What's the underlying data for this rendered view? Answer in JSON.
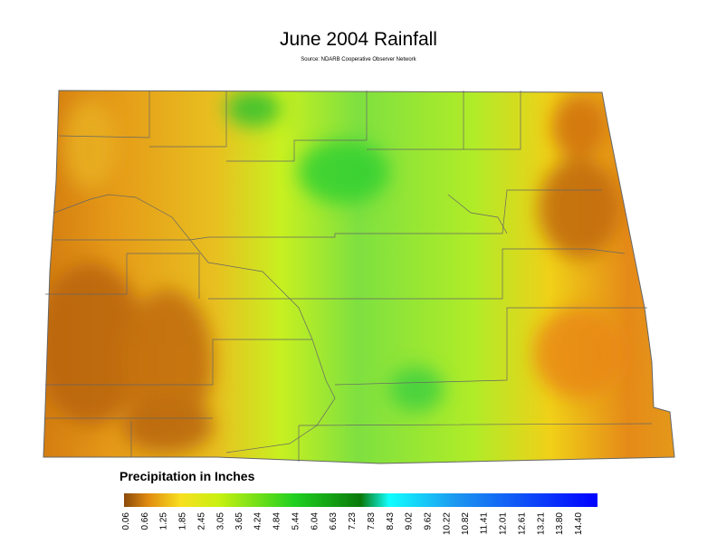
{
  "header": {
    "title": "June 2004 Rainfall",
    "source": "Source: NDARB Cooperative Observer Network"
  },
  "legend": {
    "title": "Precipitation in Inches",
    "ticks": [
      0.06,
      0.66,
      1.25,
      1.85,
      2.45,
      3.05,
      3.65,
      4.24,
      4.84,
      5.44,
      6.04,
      6.63,
      7.23,
      7.83,
      8.43,
      9.02,
      9.62,
      10.22,
      10.82,
      11.41,
      12.01,
      12.61,
      13.21,
      {
        "value": 13.8,
        "label": "13.80"
      },
      {
        "value": 14.4,
        "label": "14.40"
      }
    ]
  }
}
